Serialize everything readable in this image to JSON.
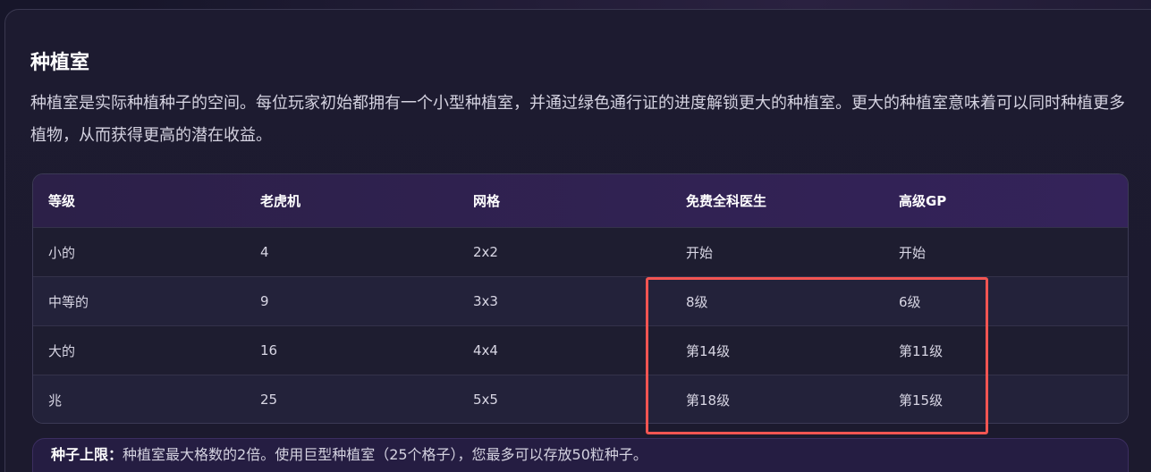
{
  "section": {
    "title": "种植室",
    "description": "种植室是实际种植种子的空间。每位玩家初始都拥有一个小型种植室，并通过绿色通行证的进度解锁更大的种植室。更大的种植室意味着可以同时种植更多植物，从而获得更高的潜在收益。"
  },
  "table": {
    "headers": [
      "等级",
      "老虎机",
      "网格",
      "免费全科医生",
      "高级GP"
    ],
    "rows": [
      [
        "小的",
        "4",
        "2x2",
        "开始",
        "开始"
      ],
      [
        "中等的",
        "9",
        "3x3",
        "8级",
        "6级"
      ],
      [
        "大的",
        "16",
        "4x4",
        "第14级",
        "第11级"
      ],
      [
        "兆",
        "25",
        "5x5",
        "第18级",
        "第15级"
      ]
    ]
  },
  "note": {
    "label": "种子上限：",
    "text": "种植室最大格数的2倍。使用巨型种植室（25个格子），您最多可以存放50粒种子。"
  },
  "highlight_color": "#f25552"
}
